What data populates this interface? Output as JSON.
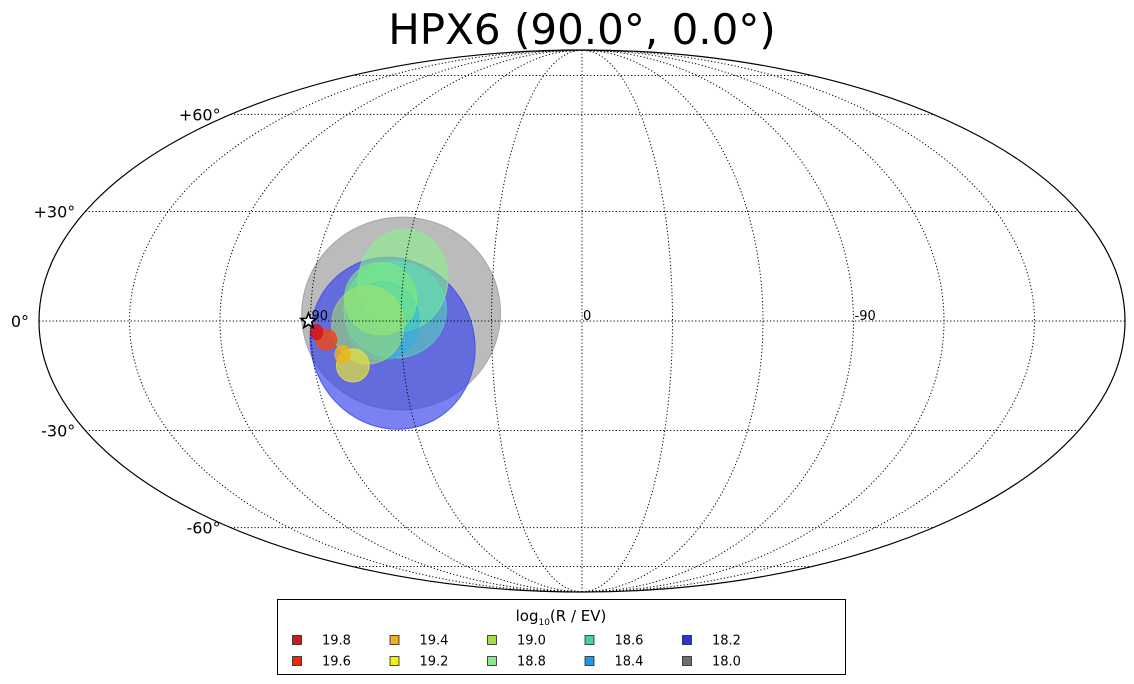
{
  "chart_data": {
    "type": "scatter",
    "projection": "mollweide",
    "title": "HPX6 (90.0°, 0.0°)",
    "grid": true,
    "y_ticks": [
      "+60°",
      "+30°",
      "0°",
      "-30°",
      "-60°"
    ],
    "x_ticks": [
      "90",
      "0",
      "-90"
    ],
    "y_tick_values": [
      60,
      30,
      0,
      -30,
      -60
    ],
    "x_tick_values": [
      90,
      0,
      -90
    ],
    "lon_grid": [
      150,
      120,
      90,
      60,
      30,
      0,
      -30,
      -60,
      -90,
      -120,
      -150
    ],
    "lat_grid": [
      75,
      60,
      30,
      0,
      -30,
      -60,
      -75
    ],
    "source": {
      "marker": "star",
      "lon": 90,
      "lat": 0
    },
    "legend": {
      "title_main": "log",
      "title_sub": "10",
      "title_rest": "(R / EV)",
      "placement": "bottom-center",
      "entries": [
        {
          "label": "19.8",
          "color": "#c81a1a"
        },
        {
          "label": "19.6",
          "color": "#e62a10"
        },
        {
          "label": "19.4",
          "color": "#e8b21e"
        },
        {
          "label": "19.2",
          "color": "#f2ee1a"
        },
        {
          "label": "19.0",
          "color": "#a8dc46"
        },
        {
          "label": "18.8",
          "color": "#86e886"
        },
        {
          "label": "18.6",
          "color": "#40d2a0"
        },
        {
          "label": "18.4",
          "color": "#2496e6"
        },
        {
          "label": "18.2",
          "color": "#2a32d8"
        },
        {
          "label": "18.0",
          "color": "#6e6e6e"
        }
      ]
    },
    "regions": [
      {
        "series": "18.0",
        "color": "#9e9e9e",
        "opacity": 0.7,
        "lon": 60,
        "lat": 2,
        "r_lon": 33,
        "r_lat": 32,
        "rotate": -8
      },
      {
        "series": "18.2",
        "color": "#3a46ee",
        "opacity": 0.68,
        "lon": 63,
        "lat": -6,
        "r_lon": 27,
        "r_lat": 29,
        "rotate": -28
      },
      {
        "series": "18.8",
        "color": "#88f08c",
        "opacity": 0.6,
        "lon": 60,
        "lat": 11,
        "r_lon": 15,
        "r_lat": 17,
        "rotate": 10
      },
      {
        "series": "18.6",
        "color": "#54e6b4",
        "opacity": 0.5,
        "lon": 62,
        "lat": 3,
        "r_lon": 17,
        "r_lat": 16,
        "rotate": 0
      },
      {
        "series": "18.4",
        "color": "#26b2e2",
        "opacity": 0.45,
        "lon": 66,
        "lat": 0,
        "r_lon": 12,
        "r_lat": 13,
        "rotate": 0
      },
      {
        "series": "18.8",
        "color": "#7cec7c",
        "opacity": 0.6,
        "lon": 67,
        "lat": 6,
        "r_lon": 12,
        "r_lat": 12,
        "rotate": 0
      },
      {
        "series": "19.0",
        "color": "#a6e46a",
        "opacity": 0.55,
        "lon": 71,
        "lat": -1,
        "r_lon": 12,
        "r_lat": 13,
        "rotate": 0
      },
      {
        "series": "19.2",
        "color": "#e6e43a",
        "opacity": 0.7,
        "lon": 77,
        "lat": -12,
        "r_lon": 5.5,
        "r_lat": 5.5,
        "rotate": 0
      },
      {
        "series": "19.4",
        "color": "#eeb21c",
        "opacity": 0.8,
        "lon": 80,
        "lat": -9,
        "r_lon": 2.5,
        "r_lat": 3,
        "rotate": 0
      },
      {
        "series": "19.6",
        "color": "#e84a1a",
        "opacity": 0.85,
        "lon": 85,
        "lat": -5,
        "r_lon": 3.5,
        "r_lat": 3.5,
        "rotate": 0
      },
      {
        "series": "19.8",
        "color": "#d21a1a",
        "opacity": 0.9,
        "lon": 88,
        "lat": -3,
        "r_lon": 2,
        "r_lat": 2.5,
        "rotate": 0
      }
    ]
  }
}
